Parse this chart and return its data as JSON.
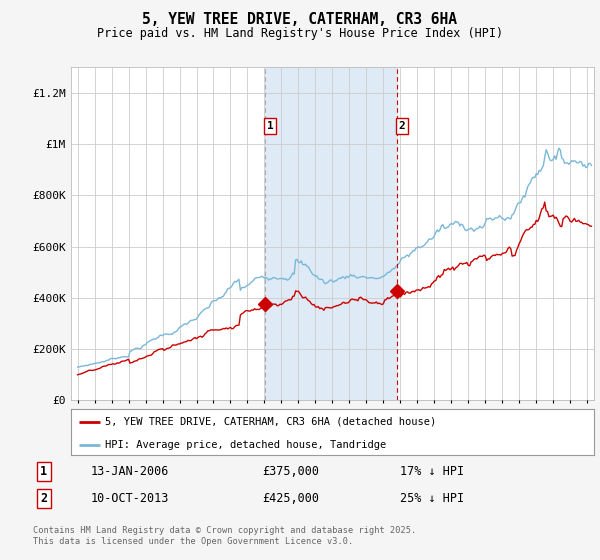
{
  "title": "5, YEW TREE DRIVE, CATERHAM, CR3 6HA",
  "subtitle": "Price paid vs. HM Land Registry's House Price Index (HPI)",
  "footer": "Contains HM Land Registry data © Crown copyright and database right 2025.\nThis data is licensed under the Open Government Licence v3.0.",
  "legend_line1": "5, YEW TREE DRIVE, CATERHAM, CR3 6HA (detached house)",
  "legend_line2": "HPI: Average price, detached house, Tandridge",
  "sale1_label": "1",
  "sale1_date": "13-JAN-2006",
  "sale1_price": "£375,000",
  "sale1_hpi": "17% ↓ HPI",
  "sale2_label": "2",
  "sale2_date": "10-OCT-2013",
  "sale2_price": "£425,000",
  "sale2_hpi": "25% ↓ HPI",
  "vline1_x": 2006.04,
  "vline2_x": 2013.78,
  "shade1_x1": 2006.04,
  "shade1_x2": 2013.78,
  "ylim_min": 0,
  "ylim_max": 1300000,
  "xlim_min": 1994.6,
  "xlim_max": 2025.4,
  "yticks": [
    0,
    200000,
    400000,
    600000,
    800000,
    1000000,
    1200000
  ],
  "ytick_labels": [
    "£0",
    "£200K",
    "£400K",
    "£600K",
    "£800K",
    "£1M",
    "£1.2M"
  ],
  "background_color": "#f5f5f5",
  "plot_bg_color": "#ffffff",
  "hpi_color": "#7ab8d9",
  "price_color": "#cc0000",
  "vline1_color": "#aaaaaa",
  "vline2_color": "#cc0000",
  "shade_color": "#deeaf5",
  "grid_color": "#cccccc",
  "marker1_x": 2006.04,
  "marker1_y": 375000,
  "marker2_x": 2013.78,
  "marker2_y": 425000
}
